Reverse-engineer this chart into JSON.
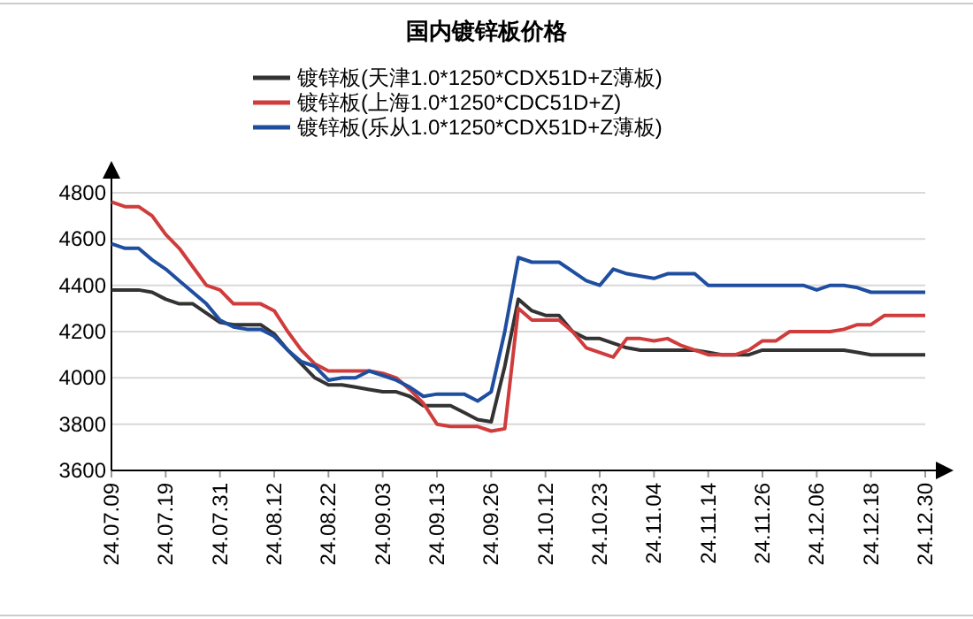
{
  "chart_data": {
    "type": "line",
    "title": "国内镀锌板价格",
    "categories": [
      "24.07.09",
      null,
      null,
      null,
      "24.07.19",
      null,
      null,
      null,
      "24.07.31",
      null,
      null,
      null,
      "24.08.12",
      null,
      null,
      null,
      "24.08.22",
      null,
      null,
      null,
      "24.09.03",
      null,
      null,
      null,
      "24.09.13",
      null,
      null,
      null,
      "24.09.26",
      null,
      null,
      null,
      "24.10.12",
      null,
      null,
      null,
      "24.10.23",
      null,
      null,
      null,
      "24.11.04",
      null,
      null,
      null,
      "24.11.14",
      null,
      null,
      null,
      "24.11.26",
      null,
      null,
      null,
      "24.12.06",
      null,
      null,
      null,
      "24.12.18",
      null,
      null,
      null,
      "24.12.30"
    ],
    "series": [
      {
        "name": "镀锌板(天津1.0*1250*CDX51D+Z薄板)",
        "color": "#333333",
        "values": [
          4380,
          4380,
          4380,
          4370,
          4340,
          4320,
          4320,
          4280,
          4240,
          4230,
          4230,
          4230,
          4190,
          4120,
          4060,
          4000,
          3970,
          3970,
          3960,
          3950,
          3940,
          3940,
          3920,
          3880,
          3880,
          3880,
          3850,
          3820,
          3810,
          4050,
          4340,
          4290,
          4270,
          4270,
          4200,
          4170,
          4170,
          4150,
          4130,
          4120,
          4120,
          4120,
          4120,
          4120,
          4110,
          4100,
          4100,
          4100,
          4120,
          4120,
          4120,
          4120,
          4120,
          4120,
          4120,
          4110,
          4100,
          4100,
          4100,
          4100,
          4100
        ]
      },
      {
        "name": "镀锌板(上海1.0*1250*CDC51D+Z)",
        "color": "#d03c3c",
        "values": [
          4760,
          4740,
          4740,
          4700,
          4620,
          4560,
          4480,
          4400,
          4380,
          4320,
          4320,
          4320,
          4290,
          4200,
          4120,
          4060,
          4030,
          4030,
          4030,
          4030,
          4020,
          4000,
          3950,
          3890,
          3800,
          3790,
          3790,
          3790,
          3770,
          3780,
          4300,
          4250,
          4250,
          4250,
          4200,
          4130,
          4110,
          4090,
          4170,
          4170,
          4160,
          4170,
          4140,
          4120,
          4100,
          4100,
          4100,
          4120,
          4160,
          4160,
          4200,
          4200,
          4200,
          4200,
          4210,
          4230,
          4230,
          4270,
          4270,
          4270,
          4270
        ]
      },
      {
        "name": "镀锌板(乐从1.0*1250*CDX51D+Z薄板)",
        "color": "#1f4ea0",
        "values": [
          4580,
          4560,
          4560,
          4510,
          4470,
          4420,
          4370,
          4320,
          4250,
          4220,
          4210,
          4210,
          4180,
          4120,
          4070,
          4050,
          3990,
          4000,
          4000,
          4030,
          4010,
          3990,
          3960,
          3920,
          3930,
          3930,
          3930,
          3900,
          3940,
          4200,
          4520,
          4500,
          4500,
          4500,
          4460,
          4420,
          4400,
          4470,
          4450,
          4440,
          4430,
          4450,
          4450,
          4450,
          4400,
          4400,
          4400,
          4400,
          4400,
          4400,
          4400,
          4400,
          4380,
          4400,
          4400,
          4390,
          4370,
          4370,
          4370,
          4370,
          4370
        ]
      }
    ],
    "ylim": [
      3600,
      4800
    ],
    "yticks": [
      3600,
      3800,
      4000,
      4200,
      4400,
      4600,
      4800
    ],
    "grid": "y",
    "legend": "top",
    "marker": "none",
    "line_style": "solid"
  }
}
